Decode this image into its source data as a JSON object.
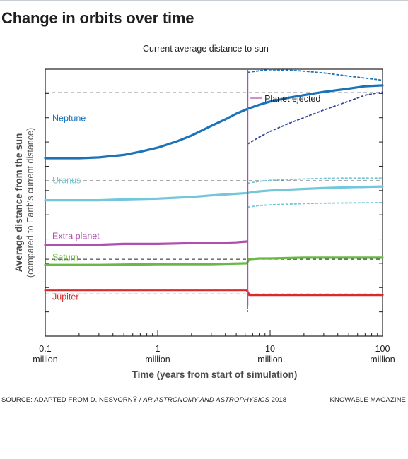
{
  "header": {
    "title": "Change in orbits over time"
  },
  "legend": {
    "dashed_label": "Current average distance to sun"
  },
  "chart_data": {
    "type": "line",
    "title": "Change in orbits over time",
    "xlabel": "Time (years from start of simulation)",
    "ylabel": "Average distance from the sun",
    "ylabel_sub": "(compared to Earth's current distance)",
    "x_scale": "log",
    "xlim": [
      0.1,
      100
    ],
    "x_unit": "million years",
    "x_ticks": [
      {
        "value": 0.1,
        "label": "0.1",
        "sublabel": "million"
      },
      {
        "value": 1,
        "label": "1",
        "sublabel": "million"
      },
      {
        "value": 10,
        "label": "10",
        "sublabel": "million"
      },
      {
        "value": 100,
        "label": "100",
        "sublabel": "million"
      }
    ],
    "ylim": [
      0,
      33
    ],
    "annotation": {
      "label": "Planet ejected",
      "x": 6.3
    },
    "reference_lines": [
      {
        "planet": "Neptune",
        "y": 30.1
      },
      {
        "planet": "Uranus",
        "y": 19.2
      },
      {
        "planet": "Saturn",
        "y": 9.5
      },
      {
        "planet": "Jupiter",
        "y": 5.2
      }
    ],
    "series": [
      {
        "name": "Neptune",
        "color": "#1a73b9",
        "x": [
          0.1,
          0.2,
          0.3,
          0.5,
          0.7,
          1,
          1.5,
          2,
          3,
          4,
          5,
          6.3,
          8,
          10,
          15,
          20,
          30,
          50,
          70,
          100
        ],
        "y": [
          22.0,
          22.0,
          22.1,
          22.4,
          22.8,
          23.3,
          24.1,
          24.8,
          26.0,
          26.8,
          27.5,
          28.1,
          28.6,
          29.0,
          29.5,
          29.8,
          30.2,
          30.6,
          30.9,
          31.0
        ]
      },
      {
        "name": "Uranus",
        "color": "#72c7da",
        "x": [
          0.1,
          0.3,
          0.5,
          1,
          2,
          3,
          5,
          6.3,
          8,
          10,
          20,
          30,
          50,
          100
        ],
        "y": [
          16.8,
          16.8,
          16.9,
          17.0,
          17.2,
          17.4,
          17.6,
          17.7,
          17.9,
          18.0,
          18.2,
          18.3,
          18.4,
          18.5
        ]
      },
      {
        "name": "Extra planet",
        "color": "#b14fb0",
        "x": [
          0.1,
          0.3,
          0.5,
          1,
          2,
          3,
          5,
          6.2
        ],
        "y": [
          11.3,
          11.3,
          11.4,
          11.4,
          11.5,
          11.5,
          11.6,
          11.7
        ]
      },
      {
        "name": "Saturn",
        "color": "#6ab946",
        "x": [
          0.1,
          0.3,
          1,
          3,
          6.2,
          6.5,
          8,
          10,
          20,
          50,
          100
        ],
        "y": [
          8.8,
          8.8,
          8.9,
          8.9,
          9.0,
          9.5,
          9.6,
          9.6,
          9.7,
          9.7,
          9.7
        ]
      },
      {
        "name": "Jupiter",
        "color": "#d92b2b",
        "x": [
          0.1,
          0.3,
          1,
          3,
          6.2,
          6.5,
          8,
          10,
          20,
          50,
          100
        ],
        "y": [
          5.7,
          5.7,
          5.7,
          5.7,
          5.7,
          5.1,
          5.1,
          5.1,
          5.1,
          5.1,
          5.1
        ]
      }
    ]
  },
  "footer": {
    "source_prefix": "SOURCE: ADAPTED FROM D. NESVORNÝ / ",
    "source_journal": "AR ASTRONOMY AND ASTROPHYSICS",
    "source_year": " 2018",
    "brand": "KNOWABLE MAGAZINE"
  }
}
